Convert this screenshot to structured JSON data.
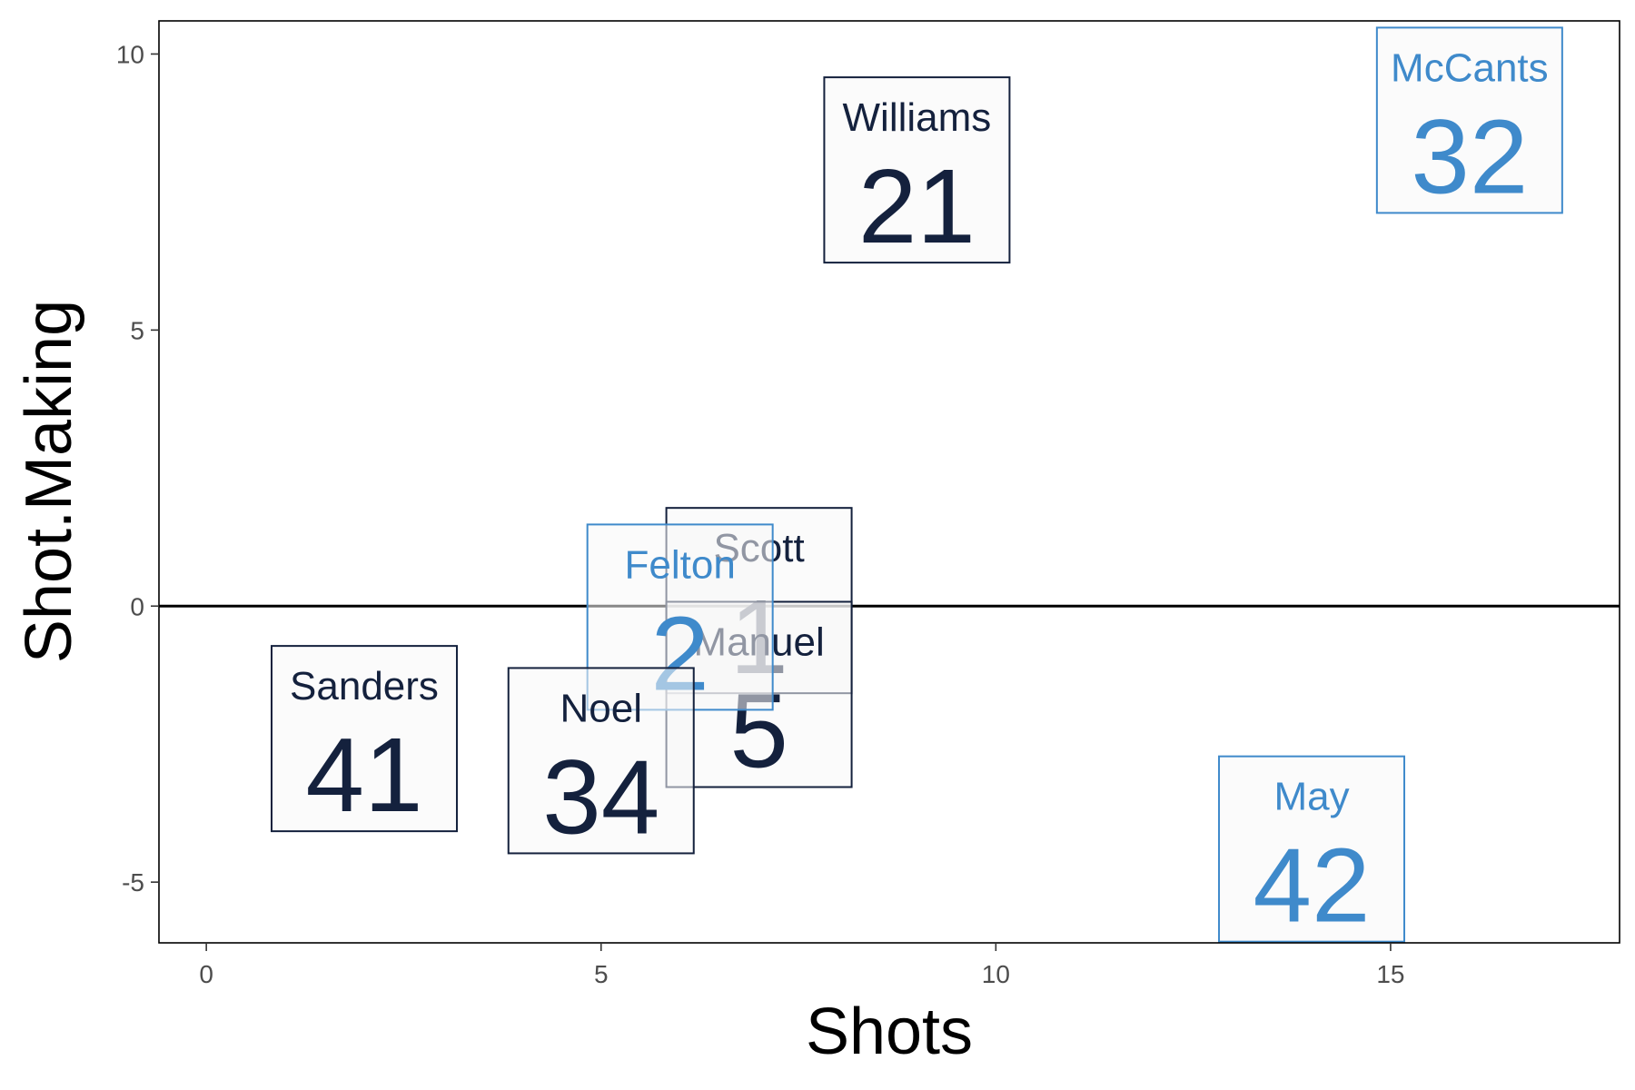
{
  "chart_data": {
    "type": "scatter",
    "title": "",
    "xlabel": "Shots",
    "ylabel": "Shot.Making",
    "xlim": [
      -0.6,
      17.9
    ],
    "ylim": [
      -6.1,
      10.6
    ],
    "x_ticks": [
      0,
      5,
      10,
      15
    ],
    "y_ticks": [
      -5,
      0,
      5,
      10
    ],
    "x_tick_labels": [
      "0",
      "5",
      "10",
      "15"
    ],
    "y_tick_labels": [
      "-5",
      "0",
      "5",
      "10"
    ],
    "grid": false,
    "reference_line_y": 0,
    "colors": {
      "dark": "#14213d",
      "blue": "#3f8acb",
      "box_fill": "#f7f7f7"
    },
    "points": [
      {
        "name": "Williams",
        "number": "21",
        "x": 9.0,
        "y": 7.9,
        "group": "dark"
      },
      {
        "name": "McCants",
        "number": "32",
        "x": 16.0,
        "y": 8.8,
        "group": "blue"
      },
      {
        "name": "Scott",
        "number": "1",
        "x": 7.0,
        "y": 0.1,
        "group": "dark"
      },
      {
        "name": "Manuel",
        "number": "5",
        "x": 7.0,
        "y": -1.6,
        "group": "dark"
      },
      {
        "name": "Felton",
        "number": "2",
        "x": 6.0,
        "y": -0.2,
        "group": "blue"
      },
      {
        "name": "Sanders",
        "number": "41",
        "x": 2.0,
        "y": -2.4,
        "group": "dark"
      },
      {
        "name": "Noel",
        "number": "34",
        "x": 5.0,
        "y": -2.8,
        "group": "dark"
      },
      {
        "name": "May",
        "number": "42",
        "x": 14.0,
        "y": -4.4,
        "group": "blue"
      }
    ]
  }
}
